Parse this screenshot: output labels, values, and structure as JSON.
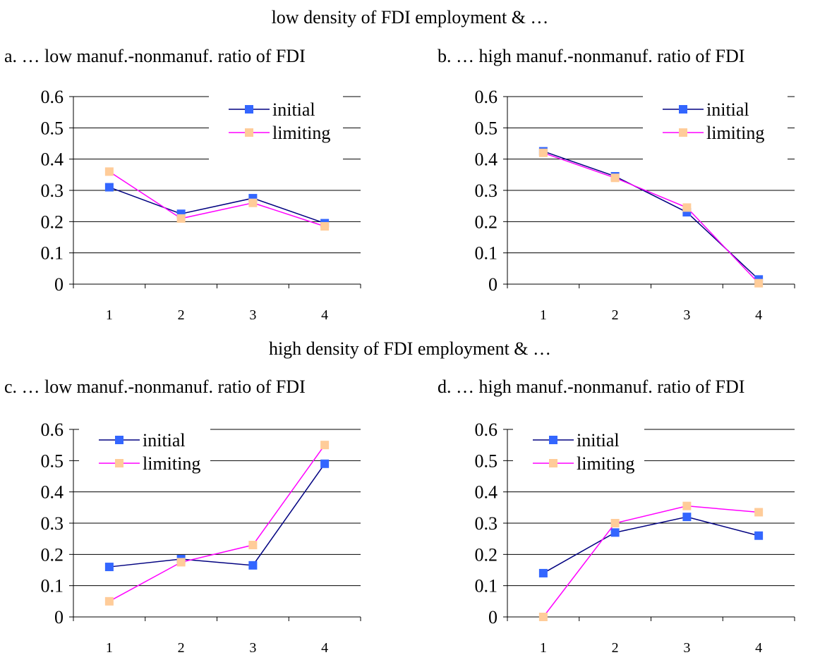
{
  "sections": {
    "top": "low density of FDI employment & …",
    "bottom": "high density of FDI employment & …"
  },
  "legend": {
    "initial": "initial",
    "limiting": "limiting"
  },
  "colors": {
    "initial_line": "#000080",
    "initial_marker": "#3366ff",
    "limiting_line": "#ff00ff",
    "limiting_marker": "#ffcc99",
    "grid": "#000000"
  },
  "chart_data": [
    {
      "type": "line",
      "title": "a. … low manuf.-nonmanuf. ratio of FDI",
      "categories": [
        "1",
        "2",
        "3",
        "4"
      ],
      "ylim": [
        0,
        0.6
      ],
      "yticks": [
        "0",
        "0.1",
        "0.2",
        "0.3",
        "0.4",
        "0.5",
        "0.6"
      ],
      "grid": true,
      "legend_position": "top-right",
      "series": [
        {
          "name": "initial",
          "values": [
            0.31,
            0.225,
            0.275,
            0.195
          ]
        },
        {
          "name": "limiting",
          "values": [
            0.36,
            0.21,
            0.26,
            0.185
          ]
        }
      ]
    },
    {
      "type": "line",
      "title": "b. … high manuf.-nonmanuf. ratio of FDI",
      "categories": [
        "1",
        "2",
        "3",
        "4"
      ],
      "ylim": [
        0,
        0.6
      ],
      "yticks": [
        "0",
        "0.1",
        "0.2",
        "0.3",
        "0.4",
        "0.5",
        "0.6"
      ],
      "grid": true,
      "legend_position": "top-right",
      "series": [
        {
          "name": "initial",
          "values": [
            0.425,
            0.345,
            0.23,
            0.015
          ]
        },
        {
          "name": "limiting",
          "values": [
            0.42,
            0.34,
            0.245,
            0.003
          ]
        }
      ]
    },
    {
      "type": "line",
      "title": "c. … low manuf.-nonmanuf. ratio of FDI",
      "categories": [
        "1",
        "2",
        "3",
        "4"
      ],
      "ylim": [
        0,
        0.6
      ],
      "yticks": [
        "0",
        "0.1",
        "0.2",
        "0.3",
        "0.4",
        "0.5",
        "0.6"
      ],
      "grid": true,
      "legend_position": "top-left",
      "series": [
        {
          "name": "initial",
          "values": [
            0.16,
            0.185,
            0.165,
            0.49
          ]
        },
        {
          "name": "limiting",
          "values": [
            0.05,
            0.175,
            0.23,
            0.55
          ]
        }
      ]
    },
    {
      "type": "line",
      "title": "d. … high manuf.-nonmanuf. ratio of FDI",
      "categories": [
        "1",
        "2",
        "3",
        "4"
      ],
      "ylim": [
        0,
        0.6
      ],
      "yticks": [
        "0",
        "0.1",
        "0.2",
        "0.3",
        "0.4",
        "0.5",
        "0.6"
      ],
      "grid": true,
      "legend_position": "top-left",
      "series": [
        {
          "name": "initial",
          "values": [
            0.14,
            0.27,
            0.32,
            0.26
          ]
        },
        {
          "name": "limiting",
          "values": [
            0.0,
            0.3,
            0.355,
            0.335
          ]
        }
      ]
    }
  ]
}
